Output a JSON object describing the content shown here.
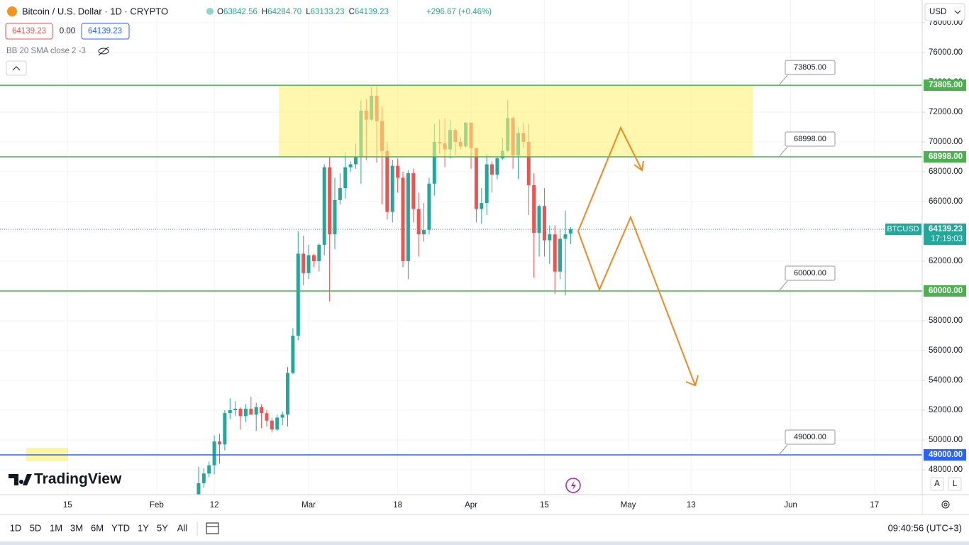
{
  "header": {
    "symbol": "Bitcoin / U.S. Dollar · 1D · CRYPTO",
    "ohlc": [
      {
        "key": "O",
        "value": "63842.56"
      },
      {
        "key": "H",
        "value": "64284.70"
      },
      {
        "key": "L",
        "value": "63133.23"
      },
      {
        "key": "C",
        "value": "64139.23"
      }
    ],
    "change": "+296.67 (+0.46%)",
    "bid": "64139.23",
    "spread": "0.00",
    "ask": "64139.23",
    "indicator": "BB 20 SMA close 2 -3"
  },
  "currency": "USD",
  "brand": "TradingView",
  "chart_data": {
    "type": "candlestick",
    "up_color": "#26a69a",
    "down_color": "#ef5350",
    "grid": true,
    "candles": [
      [
        45300,
        48200,
        45200,
        47100
      ],
      [
        47100,
        48100,
        46800,
        47750
      ],
      [
        47750,
        48550,
        47500,
        48300
      ],
      [
        48300,
        50300,
        47700,
        49900
      ],
      [
        49900,
        50400,
        48400,
        49700
      ],
      [
        49700,
        52000,
        49300,
        51800
      ],
      [
        51800,
        52800,
        51400,
        52000
      ],
      [
        52000,
        52600,
        51600,
        52100
      ],
      [
        52100,
        52200,
        50700,
        51600
      ],
      [
        51600,
        52400,
        51200,
        52100
      ],
      [
        52100,
        52900,
        51700,
        51700
      ],
      [
        51700,
        52500,
        50600,
        52200
      ],
      [
        52200,
        52400,
        50800,
        51800
      ],
      [
        51800,
        52000,
        50900,
        51300
      ],
      [
        51300,
        51500,
        50500,
        50700
      ],
      [
        50700,
        51700,
        50600,
        51500
      ],
      [
        51500,
        51900,
        51000,
        51700
      ],
      [
        51700,
        54900,
        50900,
        54500
      ],
      [
        54500,
        57500,
        54400,
        57000
      ],
      [
        57000,
        64000,
        56700,
        62500
      ],
      [
        62500,
        63700,
        60400,
        61200
      ],
      [
        61200,
        63100,
        60800,
        62400
      ],
      [
        62400,
        62500,
        61600,
        62000
      ],
      [
        62000,
        63200,
        61300,
        63100
      ],
      [
        63100,
        68500,
        62400,
        68300
      ],
      [
        68300,
        69000,
        59300,
        63800
      ],
      [
        63800,
        67600,
        62800,
        66100
      ],
      [
        66100,
        67900,
        65800,
        66900
      ],
      [
        66900,
        69300,
        66200,
        68300
      ],
      [
        68300,
        68700,
        68000,
        68500
      ],
      [
        68500,
        69900,
        68200,
        69000
      ],
      [
        69000,
        72800,
        67200,
        72100
      ],
      [
        72100,
        72900,
        68800,
        71500
      ],
      [
        71500,
        73700,
        71400,
        73100
      ],
      [
        73100,
        73800,
        68600,
        71400
      ],
      [
        71400,
        72400,
        65800,
        69400
      ],
      [
        69400,
        70000,
        64800,
        65300
      ],
      [
        65300,
        68800,
        64600,
        68400
      ],
      [
        68400,
        68900,
        66600,
        67600
      ],
      [
        67600,
        68000,
        61600,
        62000
      ],
      [
        62000,
        68100,
        60800,
        67900
      ],
      [
        67900,
        68200,
        64600,
        65500
      ],
      [
        65500,
        66600,
        62300,
        63800
      ],
      [
        63800,
        65900,
        63300,
        64100
      ],
      [
        64100,
        67600,
        63800,
        67200
      ],
      [
        67200,
        71200,
        66400,
        70000
      ],
      [
        70000,
        71500,
        69200,
        69900
      ],
      [
        69900,
        71600,
        68300,
        69500
      ],
      [
        69500,
        71500,
        68900,
        70800
      ],
      [
        70800,
        70900,
        69100,
        70000
      ],
      [
        70000,
        70300,
        69500,
        69700
      ],
      [
        69700,
        71300,
        69600,
        71300
      ],
      [
        71300,
        71300,
        68200,
        69600
      ],
      [
        69600,
        69600,
        64600,
        65500
      ],
      [
        65500,
        66900,
        64500,
        65900
      ],
      [
        65900,
        69200,
        65100,
        68500
      ],
      [
        68500,
        68700,
        66600,
        67800
      ],
      [
        67800,
        69000,
        67500,
        68900
      ],
      [
        68900,
        70300,
        68800,
        69400
      ],
      [
        69400,
        72800,
        69300,
        71600
      ],
      [
        71600,
        71700,
        68200,
        69100
      ],
      [
        69100,
        71000,
        67500,
        70600
      ],
      [
        70600,
        71300,
        69600,
        70000
      ],
      [
        70000,
        71200,
        65100,
        67100
      ],
      [
        67100,
        67900,
        60900,
        63900
      ],
      [
        63900,
        65800,
        62300,
        65700
      ],
      [
        65700,
        66900,
        62300,
        63400
      ],
      [
        63400,
        64400,
        61800,
        63800
      ],
      [
        63800,
        64400,
        59800,
        61300
      ],
      [
        61300,
        64200,
        60800,
        63500
      ],
      [
        63500,
        65400,
        59700,
        63800
      ],
      [
        63842.56,
        64284.7,
        63133.23,
        64139.23
      ]
    ],
    "ylim": [
      46333,
      79524
    ],
    "yticks": [
      {
        "value": 48000,
        "label": "48000.00"
      },
      {
        "value": 50000,
        "label": "50000.00"
      },
      {
        "value": 52000,
        "label": "52000.00"
      },
      {
        "value": 54000,
        "label": "54000.00"
      },
      {
        "value": 56000,
        "label": "56000.00"
      },
      {
        "value": 58000,
        "label": "58000.00"
      },
      {
        "value": 60000,
        "label": "60000.00"
      },
      {
        "value": 62000,
        "label": "62000.00"
      },
      {
        "value": 64000,
        "label": "64000.00"
      },
      {
        "value": 66000,
        "label": "66000.00"
      },
      {
        "value": 68000,
        "label": "68000.00"
      },
      {
        "value": 70000,
        "label": "70000.00"
      },
      {
        "value": 72000,
        "label": "72000.00"
      },
      {
        "value": 74000,
        "label": "74000.00"
      },
      {
        "value": 76000,
        "label": "76000.00"
      },
      {
        "value": 78000,
        "label": "78000.00"
      }
    ],
    "xlim": [
      -37.9,
      138.1
    ],
    "xticks": [
      {
        "value": -25,
        "label": "15"
      },
      {
        "value": -8,
        "label": "Feb"
      },
      {
        "value": 3,
        "label": "12"
      },
      {
        "value": 21,
        "label": "Mar"
      },
      {
        "value": 38,
        "label": "18"
      },
      {
        "value": 52,
        "label": "Apr"
      },
      {
        "value": 66,
        "label": "15"
      },
      {
        "value": 82,
        "label": "May"
      },
      {
        "value": 94,
        "label": "13"
      },
      {
        "value": 113,
        "label": "Jun"
      },
      {
        "value": 129,
        "label": "17"
      }
    ],
    "levels": [
      {
        "value": 73805,
        "label": "73805.00",
        "color": "#4caf50"
      },
      {
        "value": 68998,
        "label": "68998.00",
        "color": "#4caf50"
      },
      {
        "value": 60000,
        "label": "60000.00",
        "color": "#4caf50"
      },
      {
        "value": 49000,
        "label": "49000.00",
        "color": "#2962ff"
      }
    ],
    "price_tag": {
      "symbol": "BTCUSD",
      "price": "64139.23",
      "countdown": "17:19:03"
    }
  },
  "toolbar": {
    "ranges": [
      "1D",
      "5D",
      "1M",
      "3M",
      "6M",
      "YTD",
      "1Y",
      "5Y",
      "All"
    ],
    "clock": "09:40:56 (UTC+3)",
    "scale_buttons": [
      "A",
      "L"
    ]
  }
}
